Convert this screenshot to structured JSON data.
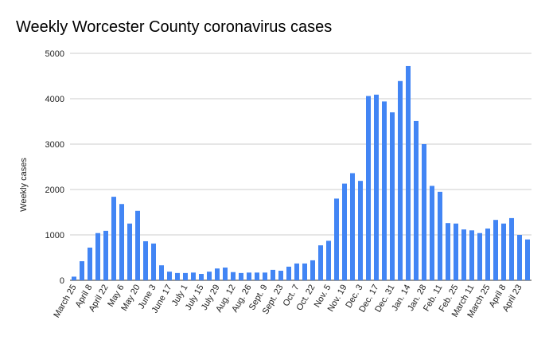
{
  "chart_data": {
    "type": "bar",
    "title": "Weekly Worcester County coronavirus cases",
    "y_label": "Weekly cases",
    "categories": [
      "March 25",
      null,
      "April 8",
      null,
      "April 22",
      null,
      "May 6",
      null,
      "May 20",
      null,
      "June 3",
      null,
      "June 17",
      null,
      "July 1",
      null,
      "July 15",
      null,
      "July 29",
      null,
      "Aug. 12",
      null,
      "Aug. 26",
      null,
      "Sept. 9",
      null,
      "Sept. 23",
      null,
      "Oct. 7",
      null,
      "Oct. 22",
      null,
      "Nov. 5",
      null,
      "Nov. 19",
      null,
      "Dec. 3",
      null,
      "Dec. 17",
      null,
      "Dec. 31",
      null,
      "Jan. 14",
      null,
      "Jan. 28",
      null,
      "Feb. 11",
      null,
      "Feb. 25",
      null,
      "March 11",
      null,
      "March 25",
      null,
      "April 8",
      null,
      "April 23",
      null
    ],
    "values": [
      80,
      420,
      720,
      1040,
      1090,
      1840,
      1680,
      1250,
      1530,
      860,
      810,
      330,
      190,
      160,
      160,
      170,
      140,
      190,
      260,
      280,
      180,
      160,
      170,
      170,
      170,
      230,
      210,
      300,
      370,
      370,
      440,
      770,
      870,
      1800,
      2130,
      2360,
      2190,
      4060,
      4090,
      3940,
      3700,
      4390,
      4720,
      3510,
      3000,
      2080,
      1950,
      1260,
      1250,
      1120,
      1100,
      1040,
      1140,
      1330,
      1250,
      1370,
      1000,
      900
    ],
    "color": "#4285f4",
    "ylim": [
      0,
      5000
    ],
    "yticks": [
      0,
      1000,
      2000,
      3000,
      4000,
      5000
    ],
    "grid": true
  }
}
